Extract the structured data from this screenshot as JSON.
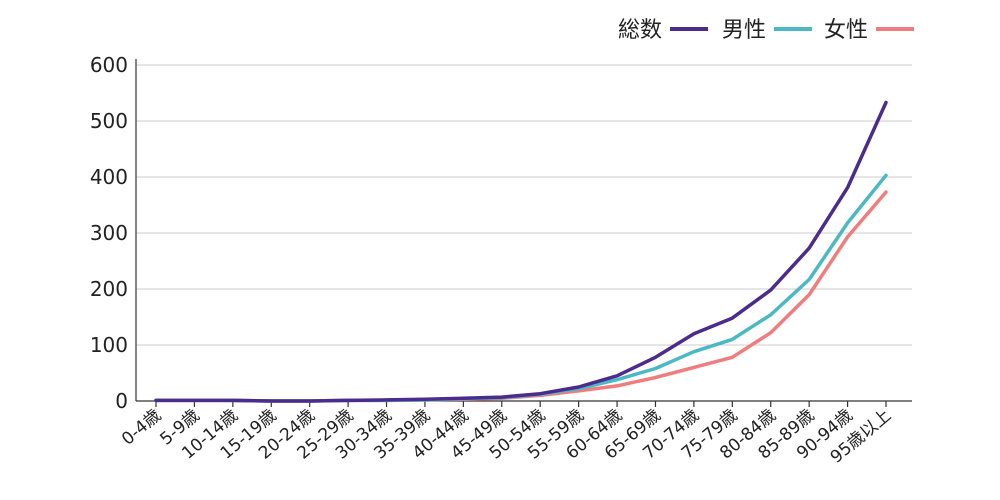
{
  "chart_data": {
    "type": "line",
    "title": "",
    "xlabel": "",
    "ylabel": "",
    "ylim": [
      0,
      600
    ],
    "yticks": [
      0,
      100,
      200,
      300,
      400,
      500,
      600
    ],
    "grid": true,
    "legend_position": "top-right",
    "categories": [
      "0-4歳",
      "5-9歳",
      "10-14歳",
      "15-19歳",
      "20-24歳",
      "25-29歳",
      "30-34歳",
      "35-39歳",
      "40-44歳",
      "45-49歳",
      "50-54歳",
      "55-59歳",
      "60-64歳",
      "65-69歳",
      "70-74歳",
      "75-79歳",
      "80-84歳",
      "85-89歳",
      "90-94歳",
      "95歳以上"
    ],
    "series": [
      {
        "name": "総数",
        "color": "#4b2b8c",
        "values": [
          1,
          1,
          1,
          0,
          0,
          1,
          2,
          3,
          5,
          7,
          13,
          25,
          45,
          78,
          120,
          148,
          198,
          273,
          381,
          533
        ]
      },
      {
        "name": "男性",
        "color": "#4bb8c4",
        "values": [
          1,
          1,
          1,
          0,
          0,
          1,
          1,
          2,
          4,
          6,
          12,
          22,
          38,
          58,
          88,
          110,
          154,
          217,
          318,
          403
        ]
      },
      {
        "name": "女性",
        "color": "#f07d7d",
        "values": [
          1,
          1,
          1,
          0,
          0,
          1,
          1,
          2,
          3,
          5,
          10,
          18,
          27,
          42,
          60,
          78,
          122,
          190,
          293,
          373
        ]
      }
    ]
  }
}
